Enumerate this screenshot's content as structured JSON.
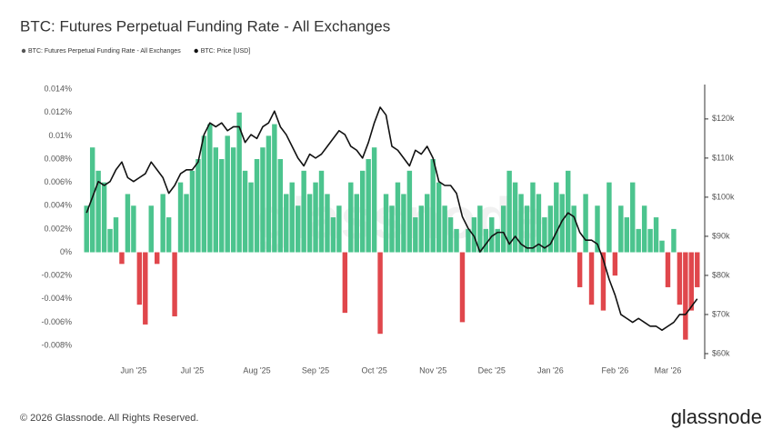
{
  "chart_data": {
    "type": "bar-line",
    "title": "BTC: Futures Perpetual Funding Rate - All Exchanges",
    "categories": [
      null,
      null,
      null,
      null,
      null,
      null,
      null,
      null,
      "Jun '25",
      null,
      null,
      null,
      null,
      null,
      null,
      null,
      null,
      null,
      "Jul '25",
      null,
      null,
      null,
      null,
      null,
      null,
      null,
      null,
      null,
      null,
      "Aug '25",
      null,
      null,
      null,
      null,
      null,
      null,
      null,
      null,
      null,
      "Sep '25",
      null,
      null,
      null,
      null,
      null,
      null,
      null,
      null,
      null,
      "Oct '25",
      null,
      null,
      null,
      null,
      null,
      null,
      null,
      null,
      null,
      "Nov '25",
      null,
      null,
      null,
      null,
      null,
      null,
      null,
      null,
      null,
      "Dec '25",
      null,
      null,
      null,
      null,
      null,
      null,
      null,
      null,
      null,
      "Jan '26",
      null,
      null,
      null,
      null,
      null,
      null,
      null,
      null,
      null,
      null,
      "Feb '26",
      null,
      null,
      null,
      null,
      null,
      null,
      null,
      null,
      "Mar '26",
      null,
      null,
      null,
      null,
      null
    ],
    "series": [
      {
        "name": "BTC: Futures Perpetual Funding Rate - All Exchanges",
        "color": "#4cc48e",
        "negative_color": "#e0474c",
        "legend_color": "#555555",
        "values": [
          0.004,
          0.009,
          0.007,
          0.006,
          0.002,
          0.003,
          -0.001,
          0.005,
          0.004,
          -0.0045,
          -0.0062,
          0.004,
          -0.001,
          0.005,
          0.003,
          -0.0055,
          0.006,
          0.005,
          0.007,
          0.008,
          0.01,
          0.011,
          0.009,
          0.008,
          0.01,
          0.009,
          0.012,
          0.007,
          0.006,
          0.008,
          0.009,
          0.01,
          0.011,
          0.008,
          0.005,
          0.006,
          0.004,
          0.007,
          0.005,
          0.006,
          0.007,
          0.005,
          0.003,
          0.004,
          -0.0052,
          0.006,
          0.005,
          0.007,
          0.008,
          0.009,
          -0.007,
          0.005,
          0.004,
          0.006,
          0.005,
          0.007,
          0.003,
          0.004,
          0.005,
          0.008,
          0.006,
          0.004,
          0.003,
          0.002,
          -0.006,
          0.002,
          0.003,
          0.004,
          0.002,
          0.003,
          0.002,
          0.004,
          0.007,
          0.006,
          0.005,
          0.004,
          0.006,
          0.005,
          0.003,
          0.004,
          0.006,
          0.005,
          0.007,
          0.004,
          -0.003,
          0.005,
          -0.0045,
          0.004,
          -0.005,
          0.006,
          -0.002,
          0.004,
          0.003,
          0.006,
          0.002,
          0.004,
          0.002,
          0.003,
          0.001,
          -0.003,
          0.002,
          -0.0045,
          -0.0075,
          -0.005,
          -0.003
        ]
      },
      {
        "name": "BTC: Price [USD]",
        "color": "#111111",
        "axis": "y2",
        "values": [
          96000,
          100000,
          104000,
          103000,
          104000,
          107000,
          109000,
          105000,
          104000,
          105000,
          106000,
          109000,
          107000,
          105000,
          101000,
          103000,
          106000,
          107000,
          107000,
          109000,
          116000,
          119000,
          118000,
          119000,
          117000,
          118000,
          118000,
          114000,
          116000,
          115000,
          118000,
          119000,
          122000,
          118000,
          116000,
          113000,
          110000,
          108000,
          111000,
          110000,
          111000,
          113000,
          115000,
          117000,
          116000,
          113000,
          112000,
          110000,
          114000,
          119000,
          123000,
          121000,
          113000,
          112000,
          110000,
          108000,
          112000,
          111000,
          113000,
          110000,
          104000,
          103000,
          103000,
          101000,
          95000,
          92000,
          90000,
          86000,
          88000,
          90000,
          91000,
          91000,
          88000,
          90000,
          88000,
          87000,
          87000,
          88000,
          87000,
          88000,
          91000,
          94000,
          96000,
          95000,
          91000,
          89000,
          89000,
          88000,
          84000,
          79000,
          75000,
          70000,
          69000,
          68000,
          69000,
          68000,
          67000,
          67000,
          66000,
          67000,
          68000,
          70000,
          70000,
          72000,
          74000
        ]
      }
    ],
    "ylim": [
      -0.00917,
      0.0144
    ],
    "yticks": [
      {
        "value": 0.014,
        "label": "0.014%"
      },
      {
        "value": 0.012,
        "label": "0.012%"
      },
      {
        "value": 0.01,
        "label": "0.01%"
      },
      {
        "value": 0.008,
        "label": "0.008%"
      },
      {
        "value": 0.006,
        "label": "0.006%"
      },
      {
        "value": 0.004,
        "label": "0.004%"
      },
      {
        "value": 0.002,
        "label": "0.002%"
      },
      {
        "value": 0,
        "label": "0%"
      },
      {
        "value": -0.002,
        "label": "-0.002%"
      },
      {
        "value": -0.004,
        "label": "-0.004%"
      },
      {
        "value": -0.006,
        "label": "-0.006%"
      },
      {
        "value": -0.008,
        "label": "-0.008%"
      }
    ],
    "y2lim": [
      58600,
      128800
    ],
    "y2ticks": [
      {
        "value": 60000,
        "label": "$60k"
      },
      {
        "value": 70000,
        "label": "$70k"
      },
      {
        "value": 80000,
        "label": "$80k"
      },
      {
        "value": 90000,
        "label": "$90k"
      },
      {
        "value": 100000,
        "label": "$100k"
      },
      {
        "value": 110000,
        "label": "$110k"
      },
      {
        "value": 120000,
        "label": "$120k"
      }
    ],
    "grid": false,
    "watermark": "glassnode"
  },
  "footer": "© 2026 Glassnode. All Rights Reserved.",
  "logo": "glassnode"
}
